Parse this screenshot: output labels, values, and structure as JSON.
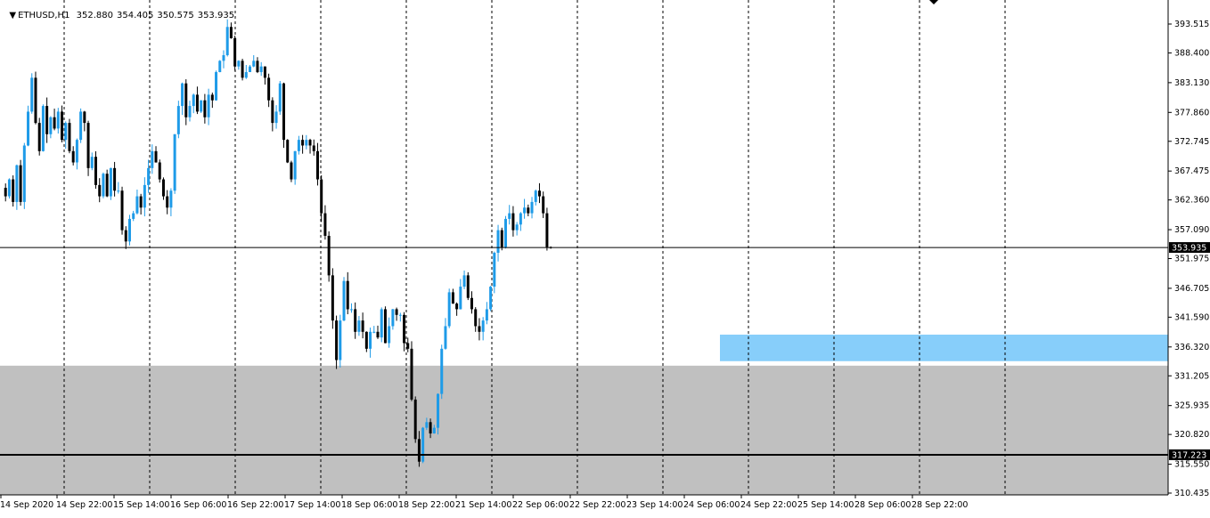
{
  "chart_header": {
    "symbol": "ETHUSD,H1",
    "open": "352.880",
    "high": "354.405",
    "low": "350.575",
    "close": "353.935"
  },
  "chart_data": {
    "type": "candlestick",
    "symbol": "ETHUSD",
    "timeframe": "H1",
    "ylim": [
      309.2,
      398.0
    ],
    "y_ticks": [
      "393.515",
      "388.400",
      "383.130",
      "377.860",
      "372.745",
      "367.475",
      "362.360",
      "357.090",
      "351.975",
      "346.705",
      "341.590",
      "336.320",
      "331.205",
      "325.935",
      "320.820",
      "315.550",
      "310.435"
    ],
    "x_ticks": [
      "14 Sep 2020",
      "14 Sep 22:00",
      "15 Sep 14:00",
      "16 Sep 06:00",
      "16 Sep 22:00",
      "17 Sep 14:00",
      "18 Sep 06:00",
      "18 Sep 22:00",
      "21 Sep 14:00",
      "22 Sep 06:00",
      "22 Sep 22:00",
      "23 Sep 14:00",
      "24 Sep 06:00",
      "24 Sep 22:00",
      "25 Sep 14:00",
      "28 Sep 06:00",
      "28 Sep 22:00"
    ],
    "current_price": "353.935",
    "support_line": "317.223",
    "zones": [
      {
        "from": 333.8,
        "to": 338.5,
        "color": "#87CEFA",
        "start": "24 Sep 06:00"
      },
      {
        "from": 309.2,
        "to": 333.0,
        "color": "#C0C0C0",
        "start": "14 Sep 2020"
      }
    ],
    "colors": {
      "bull": "#1E9BE8",
      "bear": "#000000",
      "grid": "#000000"
    },
    "path": [
      364.5,
      363,
      366,
      362,
      368.5,
      362,
      372,
      378,
      384,
      376,
      371,
      379,
      374,
      377,
      375,
      378,
      373,
      376,
      371,
      369,
      373,
      378,
      376,
      368,
      370,
      365,
      363,
      367,
      363,
      368,
      364,
      364,
      357,
      355,
      359,
      360,
      363,
      361,
      365,
      368,
      371,
      369,
      366,
      363,
      361,
      364,
      374,
      379,
      383,
      377,
      379,
      381,
      378,
      380,
      377,
      381,
      380,
      385,
      387,
      388,
      393,
      391,
      386,
      387,
      384,
      385,
      386,
      387,
      385,
      386,
      384,
      380,
      376,
      378,
      383,
      373,
      369,
      366,
      371,
      373,
      372,
      373,
      372,
      371,
      366,
      360,
      356,
      349,
      341,
      334,
      341,
      348,
      343,
      343,
      339,
      341,
      339,
      336,
      339,
      339,
      338,
      343,
      337,
      340,
      343,
      342,
      342,
      337,
      336,
      327,
      320,
      316,
      322,
      323,
      321,
      322,
      328,
      336,
      340,
      346,
      344,
      343,
      347,
      349,
      345,
      343,
      340,
      339,
      341,
      343,
      347,
      353,
      357,
      354,
      359,
      360,
      357,
      358,
      360,
      361,
      360,
      362,
      364,
      363,
      360,
      354,
      353.935
    ]
  }
}
